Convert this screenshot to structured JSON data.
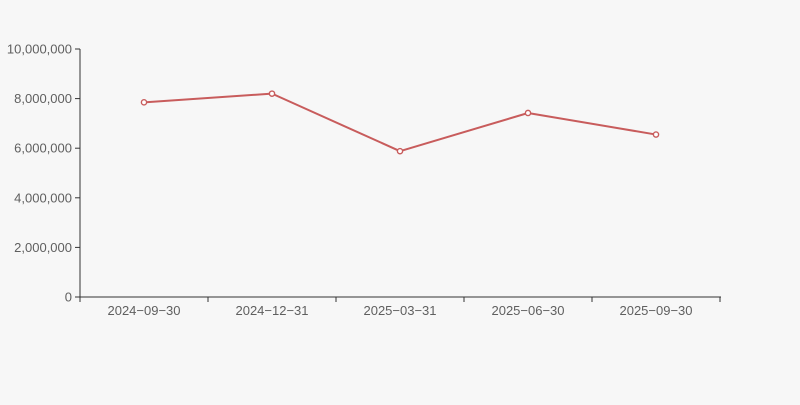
{
  "page": {
    "background": "#f7f7f7"
  },
  "chart_data": {
    "type": "line",
    "title": "",
    "xlabel": "",
    "ylabel": "",
    "categories": [
      "2024−09−30",
      "2024−12−31",
      "2025−03−31",
      "2025−06−30",
      "2025−09−30"
    ],
    "values": [
      7850000,
      8200000,
      5880000,
      7420000,
      6550000
    ],
    "ylim": [
      0,
      10000000
    ],
    "y_tick_interval": 2000000,
    "y_tick_labels": [
      "0",
      "2,000,000",
      "4,000,000",
      "6,000,000",
      "8,000,000",
      "10,000,000"
    ],
    "grid": false,
    "legend": false,
    "marker": "open-circle",
    "colors": {
      "line": "#c85c5c",
      "marker_fill": "#ffffff",
      "axis": "#333333",
      "tick_label": "#5f5f5f",
      "background": "#f7f7f7"
    }
  }
}
